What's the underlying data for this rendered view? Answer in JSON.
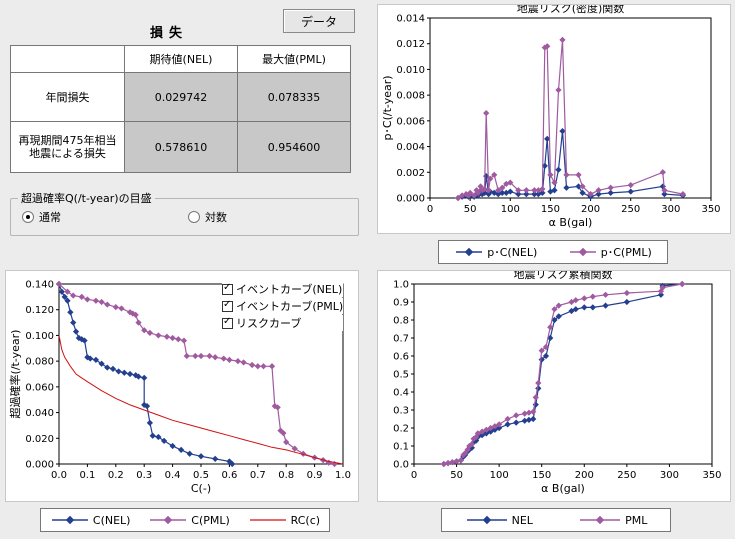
{
  "loss_panel": {
    "title": "損失",
    "data_button": "データ",
    "col_headers": [
      "期待値(NEL)",
      "最大値(PML)"
    ],
    "rows": [
      {
        "label": "年間損失",
        "nel": "0.029742",
        "pml": "0.078335"
      },
      {
        "label": "再現期間475年相当\n地震による損失",
        "nel": "0.578610",
        "pml": "0.954600"
      }
    ]
  },
  "axis_option": {
    "label": "超過確率Q(/t-year)の目盛",
    "options": [
      {
        "label": "通常",
        "selected": true
      },
      {
        "label": "対数",
        "selected": false
      }
    ]
  },
  "checkboxes": [
    "イベントカーブ(NEL)",
    "イベントカーブ(PML)",
    "リスクカーブ"
  ],
  "colors": {
    "nel": "#233f8f",
    "pml": "#a05aa0",
    "rc": "#d11111"
  },
  "chart_data": [
    {
      "type": "line",
      "title": "地震リスク(密度)関数",
      "xlabel": "α B(gal)",
      "ylabel": "p･C(/t-year)",
      "xlim": [
        0,
        350
      ],
      "ylim": [
        0,
        0.014
      ],
      "xticks": [
        "0",
        "50",
        "100",
        "150",
        "200",
        "250",
        "300",
        "350"
      ],
      "yticks": [
        "0.000",
        "0.002",
        "0.004",
        "0.006",
        "0.008",
        "0.010",
        "0.012",
        "0.014"
      ],
      "legend": [
        "p･C(NEL)",
        "p･C(PML)"
      ],
      "series": [
        {
          "name": "p･C(NEL)",
          "x": [
            35,
            40,
            45,
            48,
            50,
            55,
            58,
            60,
            63,
            65,
            68,
            70,
            73,
            75,
            80,
            85,
            90,
            95,
            100,
            110,
            120,
            130,
            135,
            140,
            143,
            146,
            150,
            155,
            160,
            165,
            170,
            185,
            190,
            200,
            210,
            225,
            250,
            290,
            292,
            315
          ],
          "y": [
            0,
            0.0001,
            0.0002,
            0.0001,
            0.0002,
            0.0001,
            0.0003,
            0.0002,
            0.0005,
            0.0003,
            0.0004,
            0.0017,
            0.0003,
            0.0005,
            0.0004,
            0.0003,
            0.0004,
            0.0004,
            0.0005,
            0.0003,
            0.0003,
            0.0003,
            0.0003,
            0.0004,
            0.0025,
            0.0046,
            0.0005,
            0.0006,
            0.0022,
            0.0052,
            0.0008,
            0.0009,
            0.0004,
            0.0001,
            0.0003,
            0.0004,
            0.0005,
            0.0009,
            0.0003,
            0.0002
          ]
        },
        {
          "name": "p･C(PML)",
          "x": [
            35,
            40,
            45,
            48,
            50,
            55,
            58,
            60,
            63,
            65,
            68,
            70,
            73,
            75,
            80,
            85,
            90,
            95,
            100,
            110,
            120,
            130,
            135,
            140,
            143,
            146,
            150,
            155,
            160,
            165,
            170,
            185,
            190,
            200,
            210,
            225,
            250,
            290,
            292,
            315
          ],
          "y": [
            0,
            0.0002,
            0.0003,
            0.0002,
            0.0004,
            0.0002,
            0.0006,
            0.0004,
            0.0009,
            0.0006,
            0.0007,
            0.0066,
            0.0006,
            0.0015,
            0.0018,
            0.0006,
            0.0008,
            0.0011,
            0.0012,
            0.0006,
            0.0006,
            0.0006,
            0.0006,
            0.0007,
            0.0117,
            0.0118,
            0.0018,
            0.0012,
            0.0084,
            0.0123,
            0.0018,
            0.0018,
            0.0009,
            0.0003,
            0.0006,
            0.0008,
            0.001,
            0.002,
            0.0006,
            0.0003
          ]
        }
      ]
    },
    {
      "type": "line",
      "title": "",
      "xlabel": "C(-)",
      "ylabel": "超過確率(/t-year)",
      "xlim": [
        0,
        1
      ],
      "ylim": [
        0,
        0.14
      ],
      "xticks": [
        "0.0",
        "0.1",
        "0.2",
        "0.3",
        "0.4",
        "0.5",
        "0.6",
        "0.7",
        "0.8",
        "0.9",
        "1.0"
      ],
      "yticks": [
        "0.000",
        "0.020",
        "0.040",
        "0.060",
        "0.080",
        "0.100",
        "0.120",
        "0.140"
      ],
      "legend": [
        "C(NEL)",
        "C(PML)",
        "RC(c)"
      ],
      "series": [
        {
          "name": "C(NEL)",
          "x": [
            0,
            0.01,
            0.02,
            0.03,
            0.04,
            0.05,
            0.06,
            0.07,
            0.08,
            0.09,
            0.1,
            0.11,
            0.13,
            0.15,
            0.17,
            0.19,
            0.21,
            0.23,
            0.25,
            0.27,
            0.28,
            0.3,
            0.3,
            0.31,
            0.32,
            0.33,
            0.35,
            0.37,
            0.4,
            0.43,
            0.46,
            0.5,
            0.55,
            0.6,
            0.61
          ],
          "y": [
            0.14,
            0.134,
            0.13,
            0.127,
            0.118,
            0.11,
            0.103,
            0.098,
            0.097,
            0.096,
            0.083,
            0.082,
            0.081,
            0.078,
            0.075,
            0.074,
            0.072,
            0.071,
            0.07,
            0.069,
            0.068,
            0.067,
            0.046,
            0.045,
            0.032,
            0.022,
            0.021,
            0.018,
            0.014,
            0.011,
            0.008,
            0.006,
            0.004,
            0.002,
            0
          ]
        },
        {
          "name": "C(PML)",
          "x": [
            0,
            0.03,
            0.05,
            0.08,
            0.1,
            0.13,
            0.15,
            0.17,
            0.2,
            0.22,
            0.25,
            0.26,
            0.27,
            0.28,
            0.3,
            0.32,
            0.35,
            0.38,
            0.4,
            0.42,
            0.44,
            0.45,
            0.48,
            0.5,
            0.53,
            0.55,
            0.58,
            0.6,
            0.63,
            0.65,
            0.68,
            0.7,
            0.72,
            0.75,
            0.76,
            0.77,
            0.78,
            0.79,
            0.8,
            0.83,
            0.86,
            0.9,
            0.93,
            0.95,
            0.97
          ],
          "y": [
            0.14,
            0.134,
            0.131,
            0.13,
            0.128,
            0.127,
            0.126,
            0.124,
            0.122,
            0.121,
            0.118,
            0.117,
            0.116,
            0.11,
            0.104,
            0.102,
            0.1,
            0.099,
            0.098,
            0.097,
            0.096,
            0.084,
            0.084,
            0.084,
            0.084,
            0.083,
            0.082,
            0.081,
            0.08,
            0.079,
            0.077,
            0.076,
            0.076,
            0.076,
            0.045,
            0.044,
            0.026,
            0.024,
            0.017,
            0.012,
            0.008,
            0.005,
            0.003,
            0.001,
            0
          ]
        },
        {
          "name": "RC(c)",
          "x": [
            0,
            0.01,
            0.02,
            0.04,
            0.06,
            0.08,
            0.1,
            0.15,
            0.2,
            0.25,
            0.3,
            0.35,
            0.4,
            0.45,
            0.5,
            0.55,
            0.6,
            0.65,
            0.7,
            0.75,
            0.8,
            0.85,
            0.9,
            0.95,
            1.0
          ],
          "y": [
            0.1,
            0.089,
            0.083,
            0.076,
            0.07,
            0.067,
            0.064,
            0.057,
            0.051,
            0.046,
            0.042,
            0.038,
            0.034,
            0.031,
            0.028,
            0.025,
            0.022,
            0.019,
            0.016,
            0.013,
            0.011,
            0.008,
            0.005,
            0.002,
            0
          ]
        }
      ]
    },
    {
      "type": "line",
      "title": "地震リスク累積関数",
      "xlabel": "α B(gal)",
      "ylabel": "",
      "xlim": [
        0,
        350
      ],
      "ylim": [
        0,
        1.0
      ],
      "xticks": [
        "0",
        "50",
        "100",
        "150",
        "200",
        "250",
        "300",
        "350"
      ],
      "yticks": [
        "0.0",
        "0.1",
        "0.2",
        "0.3",
        "0.4",
        "0.5",
        "0.6",
        "0.7",
        "0.8",
        "0.9",
        "1.0"
      ],
      "legend": [
        "NEL",
        "PML"
      ],
      "series": [
        {
          "name": "NEL",
          "x": [
            35,
            40,
            45,
            50,
            55,
            58,
            60,
            63,
            65,
            68,
            70,
            73,
            75,
            80,
            85,
            90,
            95,
            100,
            110,
            120,
            130,
            135,
            140,
            143,
            146,
            150,
            155,
            160,
            165,
            170,
            185,
            190,
            200,
            210,
            225,
            250,
            290,
            292,
            315
          ],
          "y": [
            0,
            0.005,
            0.01,
            0.015,
            0.02,
            0.04,
            0.05,
            0.07,
            0.08,
            0.09,
            0.12,
            0.13,
            0.15,
            0.16,
            0.17,
            0.18,
            0.19,
            0.2,
            0.22,
            0.23,
            0.24,
            0.245,
            0.25,
            0.33,
            0.42,
            0.58,
            0.6,
            0.7,
            0.8,
            0.82,
            0.85,
            0.86,
            0.87,
            0.87,
            0.88,
            0.9,
            0.94,
            0.99,
            1.0
          ]
        },
        {
          "name": "PML",
          "x": [
            35,
            40,
            45,
            50,
            55,
            58,
            60,
            63,
            65,
            68,
            70,
            73,
            75,
            80,
            85,
            90,
            95,
            100,
            110,
            120,
            130,
            135,
            140,
            143,
            146,
            150,
            155,
            160,
            165,
            170,
            185,
            190,
            200,
            210,
            225,
            250,
            290,
            292,
            315
          ],
          "y": [
            0,
            0.005,
            0.01,
            0.015,
            0.02,
            0.05,
            0.06,
            0.08,
            0.1,
            0.11,
            0.14,
            0.15,
            0.17,
            0.18,
            0.19,
            0.2,
            0.21,
            0.22,
            0.25,
            0.27,
            0.28,
            0.285,
            0.29,
            0.37,
            0.45,
            0.63,
            0.65,
            0.76,
            0.86,
            0.88,
            0.9,
            0.91,
            0.92,
            0.93,
            0.94,
            0.95,
            0.96,
            0.98,
            1.0
          ]
        }
      ]
    }
  ]
}
